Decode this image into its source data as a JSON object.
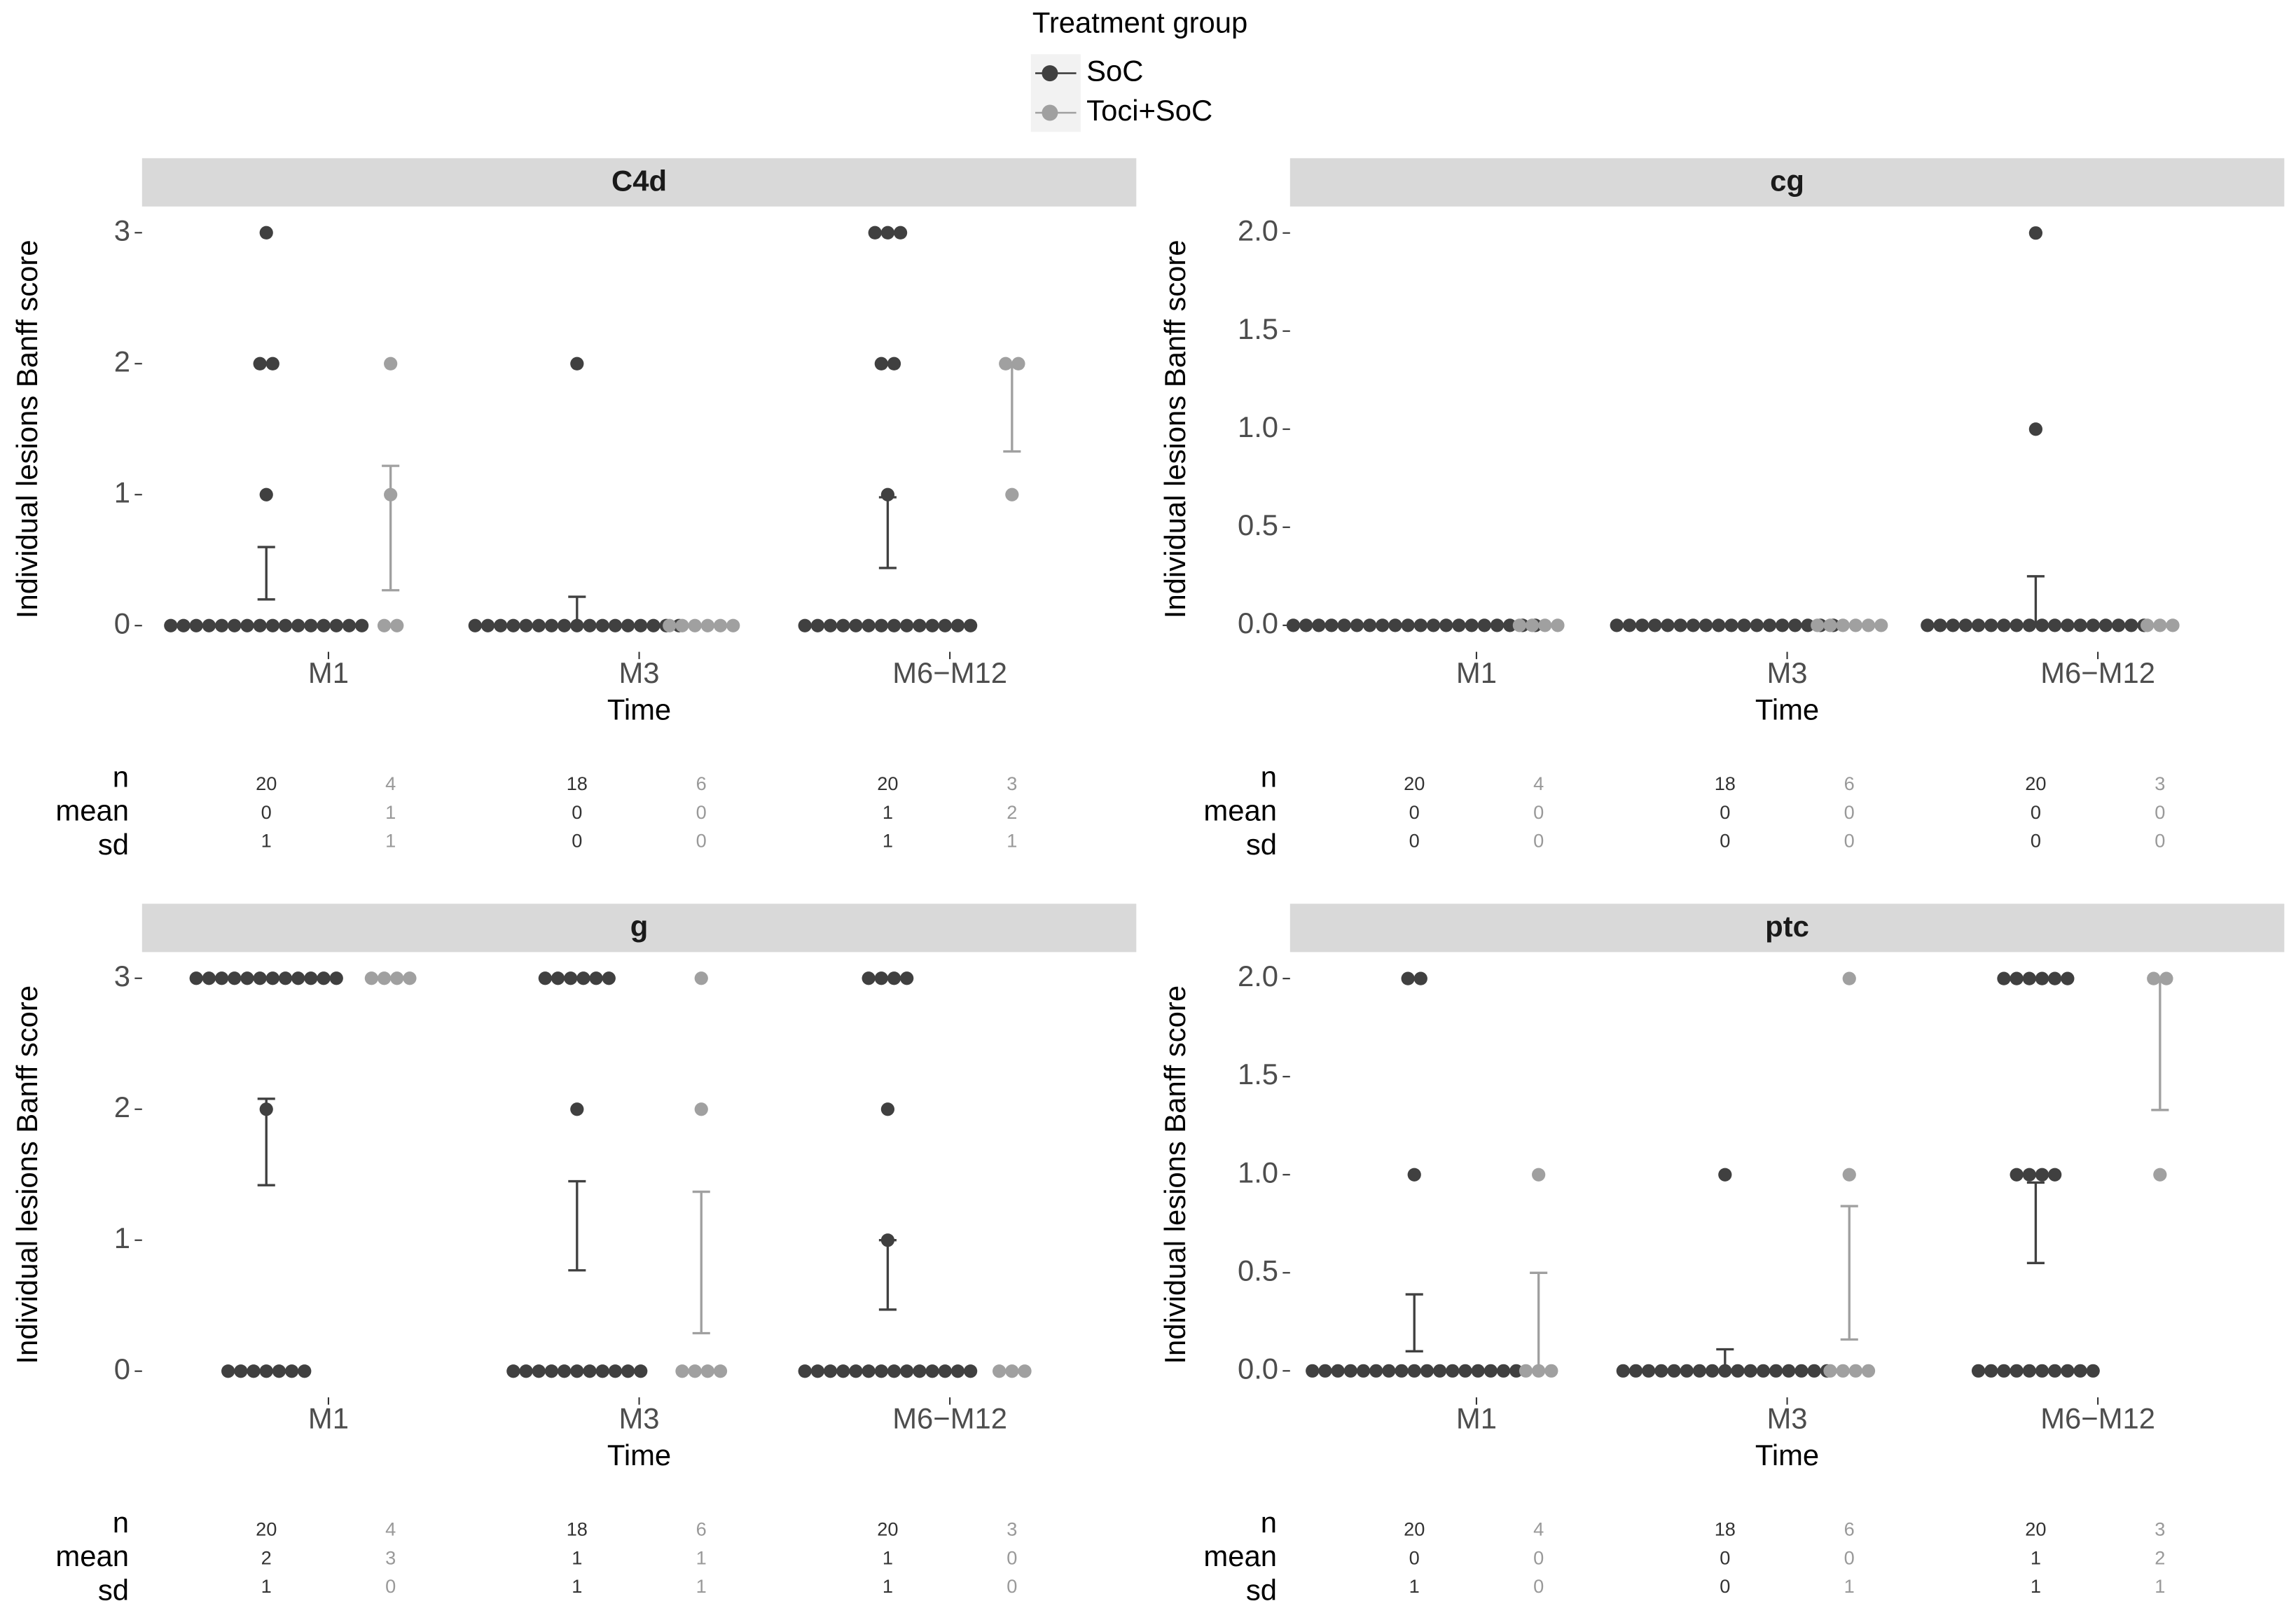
{
  "legend_title": "Treatment group",
  "chart_data": [
    {
      "type": "dotplot",
      "title": "C4d",
      "x_label": "Time",
      "y_label": "Individual lesions Banff score",
      "categories": [
        "M1",
        "M3",
        "M6−M12"
      ],
      "ylim": [
        -0.2,
        3.2
      ],
      "yticks": [
        0,
        1,
        2,
        3
      ],
      "table_labels": [
        "n",
        "mean",
        "sd"
      ],
      "series": [
        {
          "name": "SoC",
          "color": "#404040",
          "points": [
            [
              3,
              2,
              2,
              1,
              0,
              0,
              0,
              0,
              0,
              0,
              0,
              0,
              0,
              0,
              0,
              0,
              0,
              0,
              0,
              0
            ],
            [
              2,
              0,
              0,
              0,
              0,
              0,
              0,
              0,
              0,
              0,
              0,
              0,
              0,
              0,
              0,
              0,
              0,
              0
            ],
            [
              3,
              3,
              3,
              2,
              2,
              1,
              0,
              0,
              0,
              0,
              0,
              0,
              0,
              0,
              0,
              0,
              0,
              0,
              0,
              0
            ]
          ],
          "error_bars": [
            [
              0.2,
              0.6
            ],
            [
              0,
              0.22
            ],
            [
              0.44,
              0.98
            ]
          ],
          "n": [
            20,
            18,
            20
          ],
          "mean": [
            0,
            0,
            1
          ],
          "sd": [
            1,
            0,
            1
          ]
        },
        {
          "name": "Toci+SoC",
          "color": "#a0a0a0",
          "points": [
            [
              2,
              1,
              0,
              0
            ],
            [
              0,
              0,
              0,
              0,
              0,
              0
            ],
            [
              2,
              2,
              1
            ]
          ],
          "error_bars": [
            [
              0.27,
              1.22
            ],
            null,
            [
              1.33,
              2.0
            ]
          ],
          "n": [
            4,
            6,
            3
          ],
          "mean": [
            1,
            0,
            2
          ],
          "sd": [
            1,
            0,
            1
          ]
        }
      ]
    },
    {
      "type": "dotplot",
      "title": "cg",
      "x_label": "Time",
      "y_label": "Individual lesions Banff score",
      "categories": [
        "M1",
        "M3",
        "M6−M12"
      ],
      "ylim": [
        -0.135,
        2.135
      ],
      "yticks": [
        {
          "value": 0,
          "label": "0.0"
        },
        0.5,
        {
          "value": 1,
          "label": "1.0"
        },
        1.5,
        {
          "value": 2,
          "label": "2.0"
        }
      ],
      "table_labels": [
        "n",
        "mean",
        "sd"
      ],
      "series": [
        {
          "name": "SoC",
          "color": "#404040",
          "points": [
            [
              0,
              0,
              0,
              0,
              0,
              0,
              0,
              0,
              0,
              0,
              0,
              0,
              0,
              0,
              0,
              0,
              0,
              0,
              0,
              0
            ],
            [
              0,
              0,
              0,
              0,
              0,
              0,
              0,
              0,
              0,
              0,
              0,
              0,
              0,
              0,
              0,
              0,
              0,
              0
            ],
            [
              2,
              1,
              0,
              0,
              0,
              0,
              0,
              0,
              0,
              0,
              0,
              0,
              0,
              0,
              0,
              0,
              0,
              0,
              0,
              0
            ]
          ],
          "error_bars": [
            null,
            null,
            [
              0,
              0.25
            ]
          ],
          "n": [
            20,
            18,
            20
          ],
          "mean": [
            0,
            0,
            0
          ],
          "sd": [
            0,
            0,
            0
          ]
        },
        {
          "name": "Toci+SoC",
          "color": "#a0a0a0",
          "points": [
            [
              0,
              0,
              0,
              0
            ],
            [
              0,
              0,
              0,
              0,
              0,
              0
            ],
            [
              0,
              0,
              0
            ]
          ],
          "error_bars": [
            null,
            null,
            null
          ],
          "n": [
            4,
            6,
            3
          ],
          "mean": [
            0,
            0,
            0
          ],
          "sd": [
            0,
            0,
            0
          ]
        }
      ]
    },
    {
      "type": "dotplot",
      "title": "g",
      "x_label": "Time",
      "y_label": "Individual lesions Banff score",
      "categories": [
        "M1",
        "M3",
        "M6−M12"
      ],
      "ylim": [
        -0.2,
        3.2
      ],
      "yticks": [
        0,
        1,
        2,
        3
      ],
      "table_labels": [
        "n",
        "mean",
        "sd"
      ],
      "series": [
        {
          "name": "SoC",
          "color": "#404040",
          "points": [
            [
              3,
              3,
              3,
              3,
              3,
              3,
              3,
              3,
              3,
              3,
              3,
              3,
              2,
              0,
              0,
              0,
              0,
              0,
              0,
              0
            ],
            [
              3,
              3,
              3,
              3,
              3,
              3,
              2,
              0,
              0,
              0,
              0,
              0,
              0,
              0,
              0,
              0,
              0,
              0
            ],
            [
              3,
              3,
              3,
              3,
              2,
              1,
              0,
              0,
              0,
              0,
              0,
              0,
              0,
              0,
              0,
              0,
              0,
              0,
              0,
              0
            ]
          ],
          "error_bars": [
            [
              1.42,
              2.08
            ],
            [
              0.77,
              1.45
            ],
            [
              0.47,
              1.0
            ]
          ],
          "n": [
            20,
            18,
            20
          ],
          "mean": [
            2,
            1,
            1
          ],
          "sd": [
            1,
            1,
            1
          ]
        },
        {
          "name": "Toci+SoC",
          "color": "#a0a0a0",
          "points": [
            [
              3,
              3,
              3,
              3
            ],
            [
              3,
              2,
              0,
              0,
              0,
              0
            ],
            [
              0,
              0,
              0
            ]
          ],
          "error_bars": [
            null,
            [
              0.29,
              1.37
            ],
            null
          ],
          "n": [
            4,
            6,
            3
          ],
          "mean": [
            3,
            1,
            0
          ],
          "sd": [
            0,
            1,
            0
          ]
        }
      ]
    },
    {
      "type": "dotplot",
      "title": "ptc",
      "x_label": "Time",
      "y_label": "Individual lesions Banff score",
      "categories": [
        "M1",
        "M3",
        "M6−M12"
      ],
      "ylim": [
        -0.135,
        2.135
      ],
      "yticks": [
        {
          "value": 0,
          "label": "0.0"
        },
        0.5,
        {
          "value": 1,
          "label": "1.0"
        },
        1.5,
        {
          "value": 2,
          "label": "2.0"
        }
      ],
      "table_labels": [
        "n",
        "mean",
        "sd"
      ],
      "series": [
        {
          "name": "SoC",
          "color": "#404040",
          "points": [
            [
              2,
              2,
              1,
              0,
              0,
              0,
              0,
              0,
              0,
              0,
              0,
              0,
              0,
              0,
              0,
              0,
              0,
              0,
              0,
              0
            ],
            [
              1,
              0,
              0,
              0,
              0,
              0,
              0,
              0,
              0,
              0,
              0,
              0,
              0,
              0,
              0,
              0,
              0,
              0
            ],
            [
              2,
              2,
              2,
              2,
              2,
              2,
              1,
              1,
              1,
              1,
              0,
              0,
              0,
              0,
              0,
              0,
              0,
              0,
              0,
              0
            ]
          ],
          "error_bars": [
            [
              0.1,
              0.39
            ],
            [
              0,
              0.11
            ],
            [
              0.55,
              0.96
            ]
          ],
          "n": [
            20,
            18,
            20
          ],
          "mean": [
            0,
            0,
            1
          ],
          "sd": [
            1,
            0,
            1
          ]
        },
        {
          "name": "Toci+SoC",
          "color": "#a0a0a0",
          "points": [
            [
              1,
              0,
              0,
              0
            ],
            [
              2,
              1,
              0,
              0,
              0,
              0
            ],
            [
              2,
              2,
              1
            ]
          ],
          "error_bars": [
            [
              0,
              0.5
            ],
            [
              0.16,
              0.84
            ],
            [
              1.33,
              2.0
            ]
          ],
          "n": [
            4,
            6,
            3
          ],
          "mean": [
            0,
            0,
            2
          ],
          "sd": [
            0,
            1,
            1
          ]
        }
      ]
    }
  ]
}
